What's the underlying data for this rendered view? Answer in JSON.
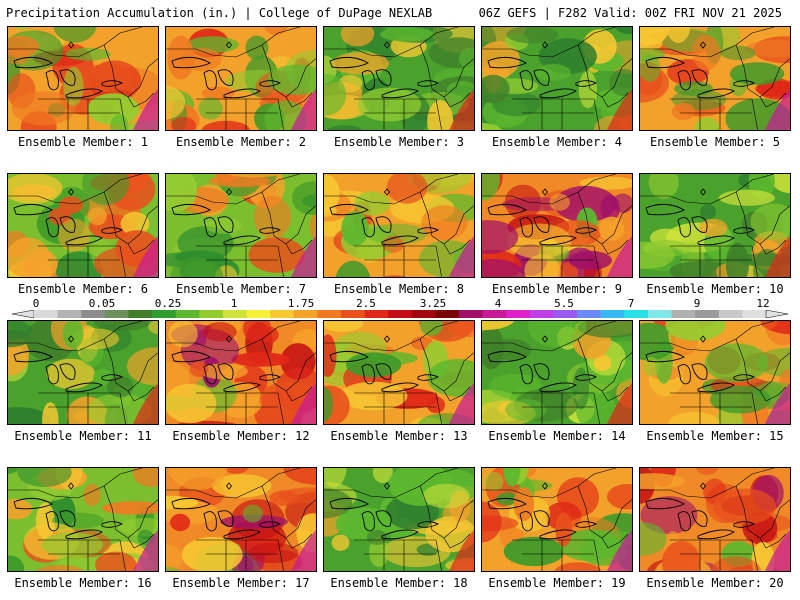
{
  "header": {
    "left": "Precipitation Accumulation (in.) | College of DuPage NEXLAB",
    "right": "06Z GEFS | F282 Valid: 00Z FRI NOV 21 2025"
  },
  "colorbar": {
    "labels": [
      "0",
      "0.05",
      "0.25",
      "1",
      "1.75",
      "2.5",
      "3.25",
      "4",
      "5.5",
      "7",
      "9",
      "12"
    ],
    "colors": [
      "#d9d9d9",
      "#b3b3b3",
      "#8c8c8c",
      "#6e8f5e",
      "#3f7f2a",
      "#2e9e2e",
      "#5cb82e",
      "#93cc30",
      "#cfe23a",
      "#f5f03a",
      "#f7c832",
      "#f5a22a",
      "#f07a22",
      "#e8501c",
      "#e02818",
      "#c40f14",
      "#a0080e",
      "#7a0606",
      "#a0106a",
      "#c8189a",
      "#e020c8",
      "#c040e8",
      "#9a5af0",
      "#6a8af5",
      "#3ab8f5",
      "#28e0e8",
      "#80e8e8",
      "#b0b0b0",
      "#9a9a9a",
      "#c8c8c8",
      "#e0e0e0"
    ]
  },
  "panels": [
    {
      "caption": "Ensemble Member: 1",
      "palette": "warm"
    },
    {
      "caption": "Ensemble Member: 2",
      "palette": "warm"
    },
    {
      "caption": "Ensemble Member: 3",
      "palette": "green"
    },
    {
      "caption": "Ensemble Member: 4",
      "palette": "green"
    },
    {
      "caption": "Ensemble Member: 5",
      "palette": "warm"
    },
    {
      "caption": "Ensemble Member: 6",
      "palette": "mixed"
    },
    {
      "caption": "Ensemble Member: 7",
      "palette": "mixed"
    },
    {
      "caption": "Ensemble Member: 8",
      "palette": "warm"
    },
    {
      "caption": "Ensemble Member: 9",
      "palette": "hot"
    },
    {
      "caption": "Ensemble Member: 10",
      "palette": "green"
    },
    {
      "caption": "Ensemble Member: 11",
      "palette": "green"
    },
    {
      "caption": "Ensemble Member: 12",
      "palette": "hot"
    },
    {
      "caption": "Ensemble Member: 13",
      "palette": "warm"
    },
    {
      "caption": "Ensemble Member: 14",
      "palette": "green"
    },
    {
      "caption": "Ensemble Member: 15",
      "palette": "warm"
    },
    {
      "caption": "Ensemble Member: 16",
      "palette": "mixed"
    },
    {
      "caption": "Ensemble Member: 17",
      "palette": "hot"
    },
    {
      "caption": "Ensemble Member: 18",
      "palette": "green"
    },
    {
      "caption": "Ensemble Member: 19",
      "palette": "warm"
    },
    {
      "caption": "Ensemble Member: 20",
      "palette": "hot"
    }
  ]
}
